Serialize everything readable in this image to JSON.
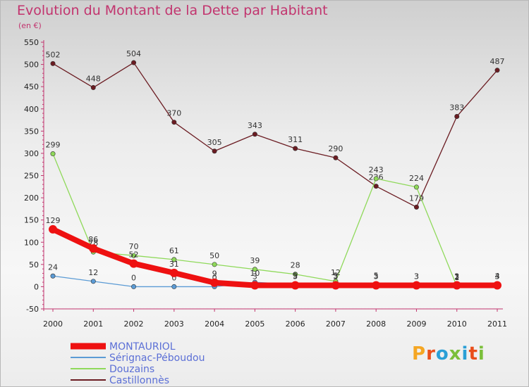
{
  "title": "Evolution du Montant de la Dette par Habitant",
  "subtitle": "(en €)",
  "logo": {
    "text": "Proxiti",
    "colors": [
      "#f5a623",
      "#e94e1b",
      "#2a9fd6",
      "#7bbf3a",
      "#2a9fd6",
      "#e94e1b",
      "#7bbf3a"
    ]
  },
  "chart_data": {
    "type": "line",
    "title": "Evolution du Montant de la Dette par Habitant",
    "subtitle": "(en €)",
    "x": [
      "2000",
      "2001",
      "2002",
      "2003",
      "2004",
      "2005",
      "2006",
      "2007",
      "2008",
      "2009",
      "2010",
      "2011"
    ],
    "ylim": [
      -50,
      550
    ],
    "yticks": [
      -50,
      0,
      50,
      100,
      150,
      200,
      250,
      300,
      350,
      400,
      450,
      500,
      550
    ],
    "grid": false,
    "legend_position": "bottom-left",
    "series": [
      {
        "name": "MONTAURIOL",
        "color": "#ee1111",
        "values": [
          129,
          86,
          52,
          31,
          9,
          3,
          3,
          3,
          3,
          3,
          3,
          3
        ],
        "labels": [
          "129",
          "86",
          "52",
          "31",
          "9",
          "3",
          "3",
          "3",
          "3",
          "3",
          "3",
          "3"
        ]
      },
      {
        "name": "Sérignac-Péboudou",
        "color": "#5b9bd5",
        "values": [
          24,
          12,
          0,
          0,
          0,
          10,
          5,
          5,
          5,
          3,
          2,
          3
        ],
        "labels": [
          "24",
          "12",
          "0",
          "0",
          "0",
          "10",
          "5",
          "5",
          "5",
          "3",
          "2",
          "3"
        ]
      },
      {
        "name": "Douzains",
        "color": "#8fd95a",
        "values": [
          299,
          78,
          70,
          61,
          50,
          39,
          28,
          12,
          243,
          224,
          1,
          4
        ],
        "labels": [
          "299",
          "78",
          "70",
          "61",
          "50",
          "39",
          "28",
          "12",
          "243",
          "224",
          "1",
          "4"
        ]
      },
      {
        "name": "Castillonnès",
        "color": "#6b1c22",
        "values": [
          502,
          448,
          504,
          370,
          305,
          343,
          311,
          290,
          226,
          179,
          383,
          487
        ],
        "labels": [
          "502",
          "448",
          "504",
          "370",
          "305",
          "343",
          "311",
          "290",
          "226",
          "179",
          "383",
          "487"
        ]
      }
    ]
  }
}
